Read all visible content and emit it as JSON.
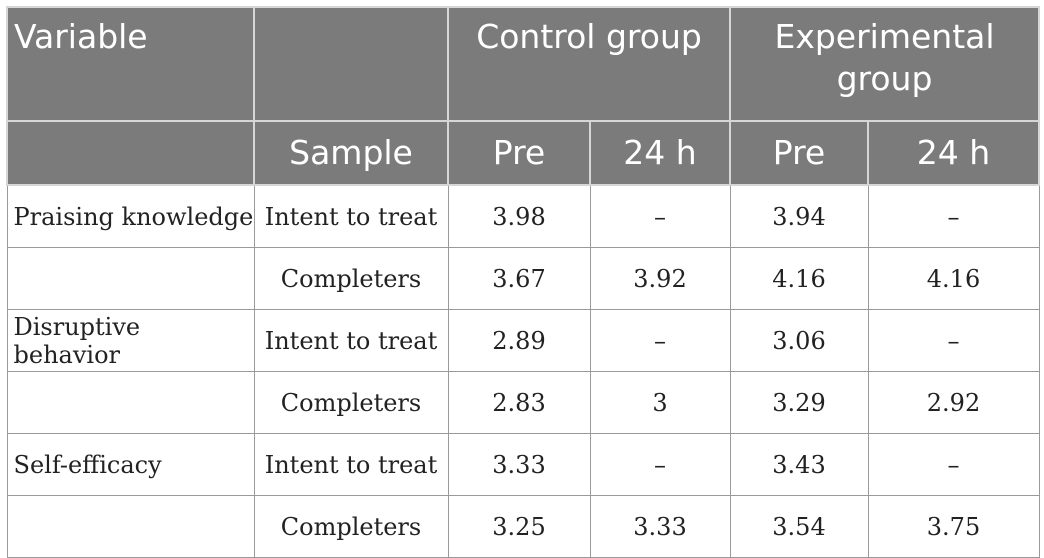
{
  "header": {
    "variable": "Variable",
    "control_group": "Control group",
    "experimental_group": "Experimental group",
    "sample": "Sample",
    "control_pre": "Pre",
    "control_24h": "24 h",
    "experimental_pre": "Pre",
    "experimental_24h": "24 h"
  },
  "rows": [
    {
      "variable": "Praising knowledge",
      "sample": "Intent to treat",
      "control_pre": "3.98",
      "control_24h": "–",
      "exp_pre": "3.94",
      "exp_24h": "–"
    },
    {
      "variable": "",
      "sample": "Completers",
      "control_pre": "3.67",
      "control_24h": "3.92",
      "exp_pre": "4.16",
      "exp_24h": "4.16"
    },
    {
      "variable": "Disruptive behavior",
      "sample": "Intent to treat",
      "control_pre": "2.89",
      "control_24h": "–",
      "exp_pre": "3.06",
      "exp_24h": "–"
    },
    {
      "variable": "",
      "sample": "Completers",
      "control_pre": "2.83",
      "control_24h": "3",
      "exp_pre": "3.29",
      "exp_24h": "2.92"
    },
    {
      "variable": "Self-efficacy",
      "sample": "Intent to treat",
      "control_pre": "3.33",
      "control_24h": "–",
      "exp_pre": "3.43",
      "exp_24h": "–"
    },
    {
      "variable": "",
      "sample": "Completers",
      "control_pre": "3.25",
      "control_24h": "3.33",
      "exp_pre": "3.54",
      "exp_24h": "3.75"
    }
  ]
}
